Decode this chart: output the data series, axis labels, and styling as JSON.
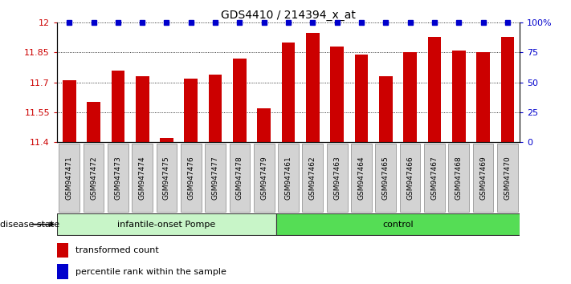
{
  "title": "GDS4410 / 214394_x_at",
  "samples": [
    "GSM947471",
    "GSM947472",
    "GSM947473",
    "GSM947474",
    "GSM947475",
    "GSM947476",
    "GSM947477",
    "GSM947478",
    "GSM947479",
    "GSM947461",
    "GSM947462",
    "GSM947463",
    "GSM947464",
    "GSM947465",
    "GSM947466",
    "GSM947467",
    "GSM947468",
    "GSM947469",
    "GSM947470"
  ],
  "bar_values": [
    11.71,
    11.6,
    11.76,
    11.73,
    11.42,
    11.72,
    11.74,
    11.82,
    11.57,
    11.9,
    11.95,
    11.88,
    11.84,
    11.73,
    11.85,
    11.93,
    11.86,
    11.85,
    11.93
  ],
  "groups": [
    {
      "label": "infantile-onset Pompe",
      "start": 0,
      "end": 9,
      "color_light": "#C8F5C8",
      "color_dark": "#55DD55"
    },
    {
      "label": "control",
      "start": 9,
      "end": 19,
      "color_light": "#55DD55",
      "color_dark": "#55DD55"
    }
  ],
  "ymin": 11.4,
  "ymax": 12.0,
  "yticks": [
    11.4,
    11.55,
    11.7,
    11.85,
    12.0
  ],
  "ytick_labels": [
    "11.4",
    "11.55",
    "11.7",
    "11.85",
    "12"
  ],
  "right_ytick_positions": [
    11.4,
    11.55,
    11.7,
    11.85,
    12.0
  ],
  "right_ytick_labels": [
    "0",
    "25",
    "50",
    "75",
    "100%"
  ],
  "bar_color": "#CC0000",
  "percentile_color": "#0000CC",
  "bar_width": 0.55,
  "disease_state_label": "disease state",
  "legend_bar_label": "transformed count",
  "legend_percentile_label": "percentile rank within the sample",
  "title_color": "#000000",
  "left_tick_color": "#CC0000",
  "right_tick_color": "#0000CC",
  "sample_box_color": "#D3D3D3",
  "sample_box_edge": "#888888"
}
